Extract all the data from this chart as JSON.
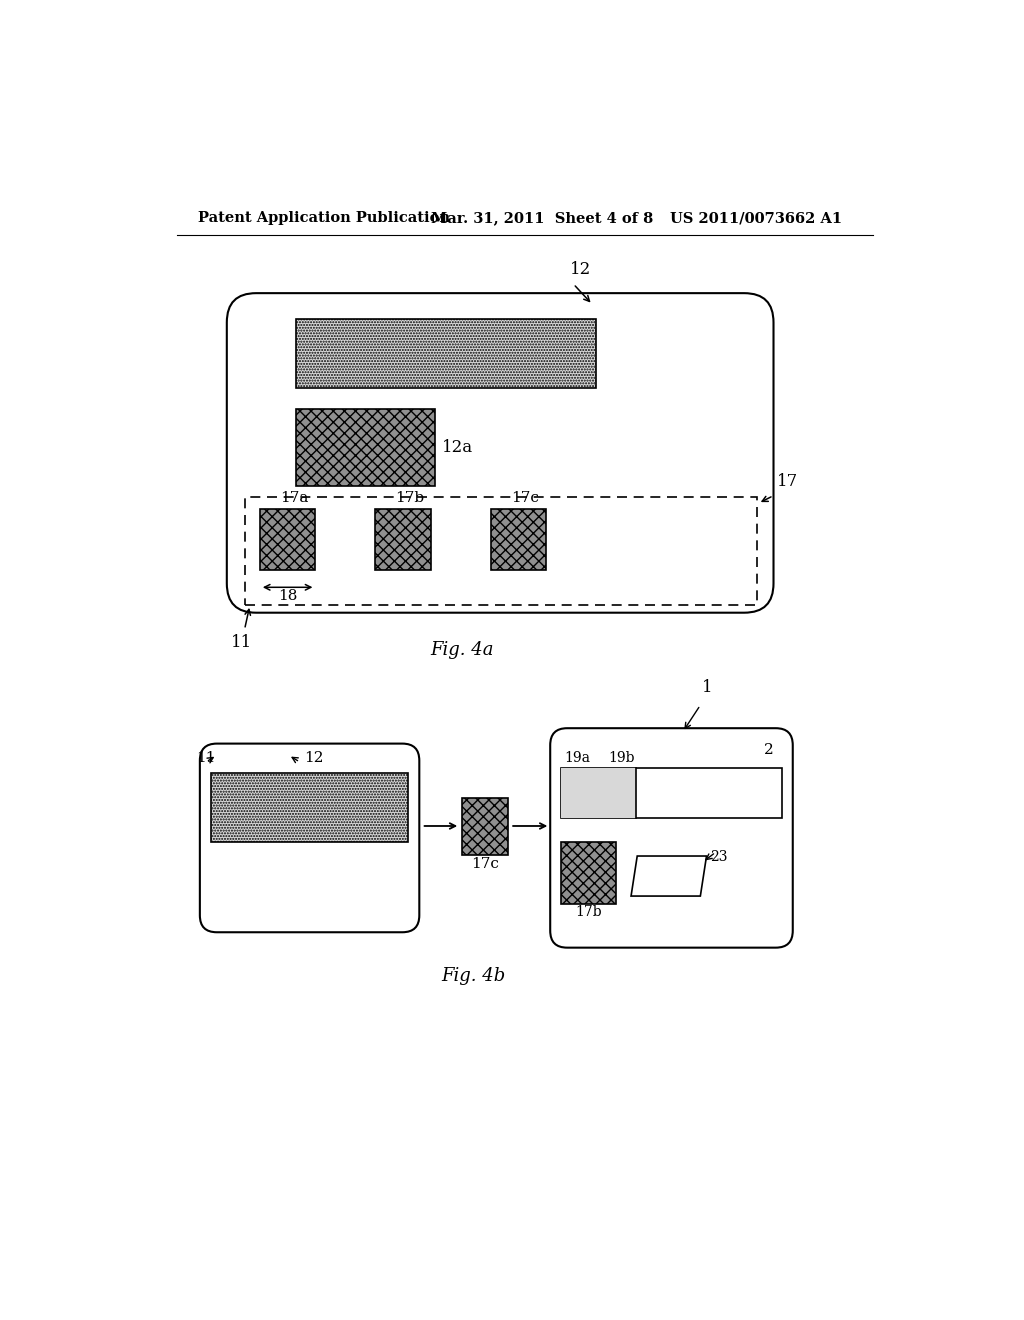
{
  "bg_color": "#ffffff",
  "header_left": "Patent Application Publication",
  "header_mid": "Mar. 31, 2011  Sheet 4 of 8",
  "header_right": "US 2011/0073662 A1",
  "fig4a_label": "Fig. 4a",
  "fig4b_label": "Fig. 4b",
  "label_11_4a": "11",
  "label_12_4a": "12",
  "label_12a": "12a",
  "label_17": "17",
  "label_17a": "17a",
  "label_17b": "17b",
  "label_17c": "17c",
  "label_18": "18",
  "label_11_4b": "11",
  "label_12_4b": "12",
  "label_17c_4b": "17c",
  "label_17b_4b": "17b",
  "label_1": "1",
  "label_2": "2",
  "label_19a": "19a",
  "label_19b": "19b",
  "label_23": "23",
  "dot_color": "#d8d8d8",
  "wavy_color": "#909090",
  "line_color": "#000000"
}
